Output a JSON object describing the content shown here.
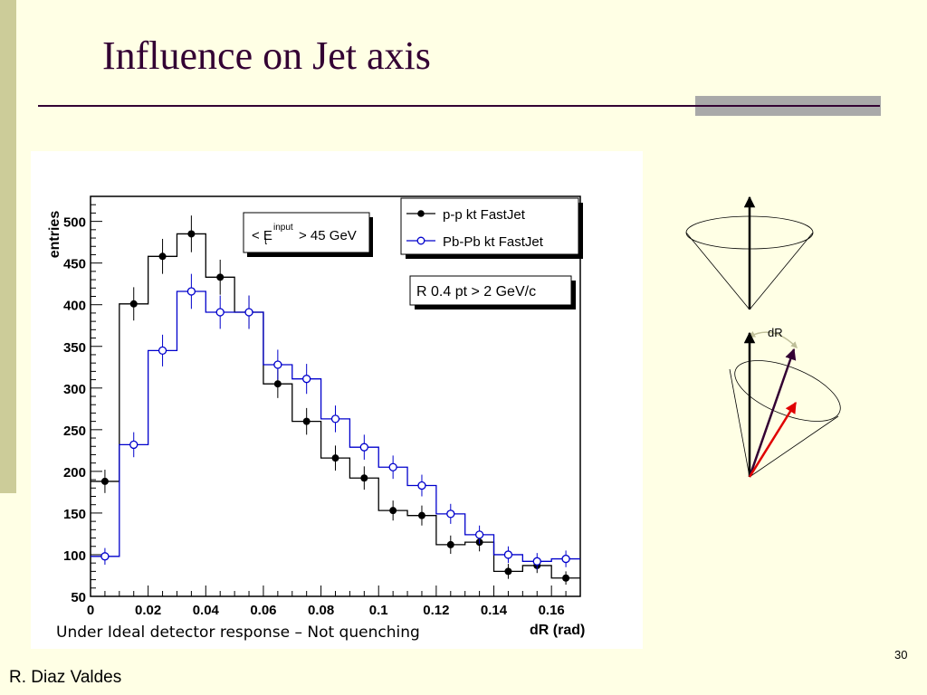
{
  "slide": {
    "title": "Influence on Jet axis",
    "caption": "Under Ideal detector response – Not quenching",
    "page_number": "30",
    "author": "R. Diaz Valdes"
  },
  "colors": {
    "title": "#330033",
    "background": "#FFFFE5",
    "left_bar": "#CCCC99",
    "pp_series": "#000000",
    "pbpb_series": "#0000CC",
    "inner_arrow": "#330033",
    "red_arrow": "#E00000",
    "dR_arrow": "#BFBF99"
  },
  "cone_diagram": {
    "dR_label": "dR"
  },
  "chart_data": {
    "type": "line",
    "step": true,
    "xlabel": "dR (rad)",
    "ylabel": "entries",
    "xlim": [
      0,
      0.17
    ],
    "ylim": [
      50,
      530
    ],
    "xticks": [
      "0",
      "0.02",
      "0.04",
      "0.06",
      "0.08",
      "0.1",
      "0.12",
      "0.14",
      "0.16"
    ],
    "yticks": [
      "50",
      "100",
      "150",
      "200",
      "250",
      "300",
      "350",
      "400",
      "450",
      "500"
    ],
    "bin_edges": [
      0,
      0.01,
      0.02,
      0.03,
      0.04,
      0.05,
      0.06,
      0.07,
      0.08,
      0.09,
      0.1,
      0.11,
      0.12,
      0.13,
      0.14,
      0.15,
      0.16,
      0.17
    ],
    "annotation_text": {
      "energy_left": "< E",
      "energy_sub": "t",
      "energy_sup": "input",
      "energy_right": "> 45 GeV",
      "cut": "R 0.4 pt > 2 GeV/c"
    },
    "legend_position": "top-right",
    "series": [
      {
        "name": "p-p kt FastJet",
        "color": "#000000",
        "marker": "filled-circle",
        "values": [
          188,
          401,
          458,
          485,
          433,
          391,
          305,
          260,
          216,
          192,
          153,
          147,
          112,
          115,
          80,
          87,
          72
        ],
        "errors": [
          14,
          20,
          21,
          22,
          21,
          20,
          17,
          16,
          15,
          14,
          12,
          12,
          11,
          11,
          9,
          9,
          8
        ]
      },
      {
        "name": "Pb-Pb kt FastJet",
        "color": "#0000CC",
        "marker": "open-circle",
        "values": [
          98,
          232,
          345,
          416,
          391,
          391,
          328,
          311,
          263,
          229,
          205,
          183,
          149,
          124,
          100,
          92,
          95
        ],
        "errors": [
          10,
          15,
          19,
          21,
          20,
          20,
          18,
          18,
          16,
          15,
          14,
          13,
          12,
          11,
          10,
          10,
          10
        ]
      }
    ]
  }
}
